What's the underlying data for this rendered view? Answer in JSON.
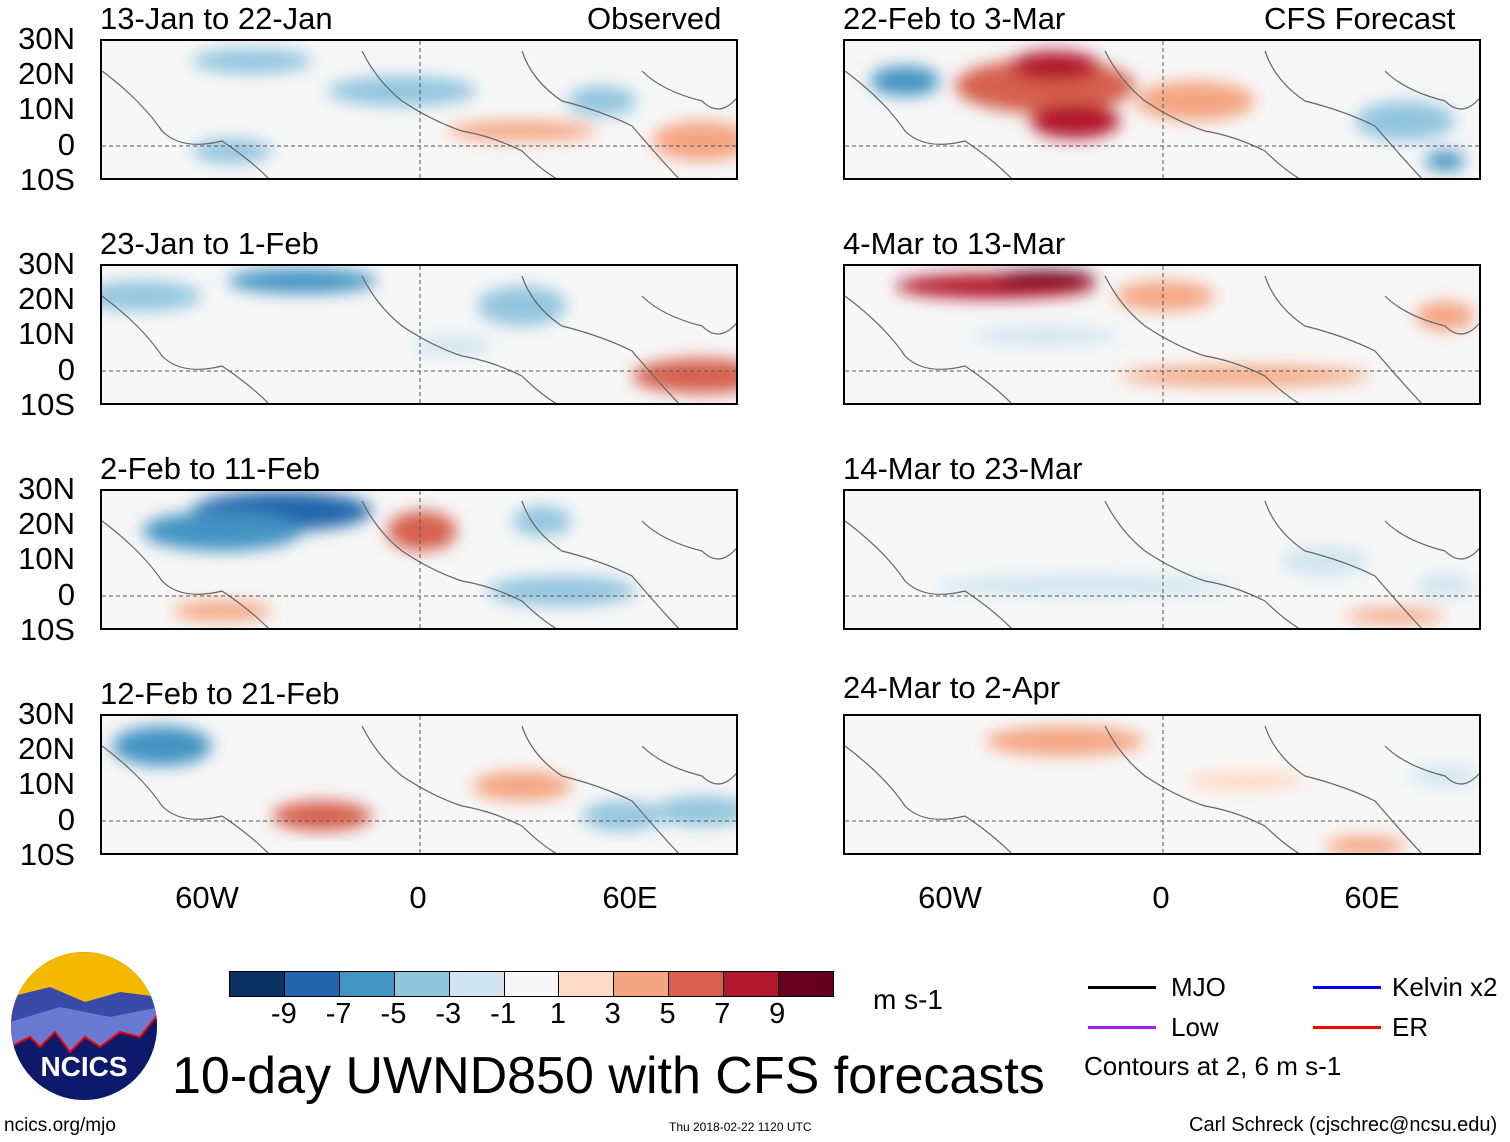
{
  "figure": {
    "title": "10-day UWND850 with CFS forecasts",
    "website": "ncics.org/mjo",
    "timestamp": "Thu 2018-02-22 1120 UTC",
    "author": "Carl Schreck (cjschrec@ncsu.edu)",
    "logo_text": "NCICS"
  },
  "columns": {
    "observed_label": "Observed",
    "forecast_label": "CFS Forecast"
  },
  "panels": {
    "observed": [
      "13-Jan to 22-Jan",
      "23-Jan to 1-Feb",
      "2-Feb to 11-Feb",
      "12-Feb to 21-Feb"
    ],
    "forecast": [
      "22-Feb to 3-Mar",
      "4-Mar to 13-Mar",
      "14-Mar to 23-Mar",
      "24-Mar to 2-Apr"
    ]
  },
  "axes": {
    "lat_labels": [
      "30N",
      "20N",
      "10N",
      "0",
      "10S"
    ],
    "lon_labels": [
      "60W",
      "0",
      "60E"
    ]
  },
  "colorbar": {
    "units": "m s-1",
    "tick_labels": [
      "-9",
      "-7",
      "-5",
      "-3",
      "-1",
      "1",
      "3",
      "5",
      "7",
      "9"
    ],
    "colors": [
      "#0b3262",
      "#2166ac",
      "#4393c3",
      "#92c5de",
      "#d1e5f0",
      "#f7f7f7",
      "#fddbc7",
      "#f4a582",
      "#d6604d",
      "#b2182b",
      "#67001f"
    ]
  },
  "legend": {
    "items": [
      {
        "label": "MJO",
        "color": "#000000"
      },
      {
        "label": "Kelvin x2",
        "color": "#0000ff"
      },
      {
        "label": "Low",
        "color": "#a020f0"
      },
      {
        "label": "ER",
        "color": "#ff0000"
      }
    ],
    "note": "Contours at 2, 6 m s-1"
  }
}
